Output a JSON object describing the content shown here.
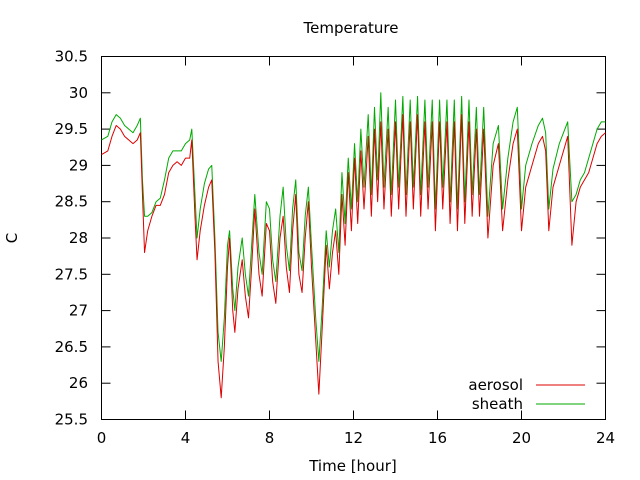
{
  "chart_data": {
    "type": "line",
    "title": "Temperature",
    "xlabel": "Time [hour]",
    "ylabel": "C",
    "xlim": [
      0,
      24
    ],
    "ylim": [
      25.5,
      30.5
    ],
    "xticks": [
      0,
      4,
      8,
      12,
      16,
      20,
      24
    ],
    "yticks": [
      25.5,
      26,
      26.5,
      27,
      27.5,
      28,
      28.5,
      29,
      29.5,
      30,
      30.5
    ],
    "ytick_labels": [
      "25.5",
      "26",
      "26.5",
      "27",
      "27.5",
      "28",
      "28.5",
      "29",
      "29.5",
      "30",
      "30.5"
    ],
    "grid": false,
    "legend_position": "bottom-right",
    "series": [
      {
        "name": "aerosol",
        "color": "#dd0000",
        "points": [
          [
            0.0,
            29.15
          ],
          [
            0.3,
            29.2
          ],
          [
            0.5,
            29.4
          ],
          [
            0.7,
            29.55
          ],
          [
            0.9,
            29.5
          ],
          [
            1.1,
            29.4
          ],
          [
            1.3,
            29.35
          ],
          [
            1.5,
            29.3
          ],
          [
            1.7,
            29.35
          ],
          [
            1.85,
            29.45
          ],
          [
            1.95,
            28.6
          ],
          [
            2.05,
            27.8
          ],
          [
            2.2,
            28.1
          ],
          [
            2.4,
            28.3
          ],
          [
            2.6,
            28.45
          ],
          [
            2.8,
            28.45
          ],
          [
            3.0,
            28.6
          ],
          [
            3.2,
            28.9
          ],
          [
            3.4,
            29.0
          ],
          [
            3.6,
            29.05
          ],
          [
            3.8,
            29.0
          ],
          [
            4.0,
            29.1
          ],
          [
            4.2,
            29.1
          ],
          [
            4.3,
            29.35
          ],
          [
            4.45,
            28.3
          ],
          [
            4.55,
            27.7
          ],
          [
            4.7,
            28.1
          ],
          [
            4.9,
            28.45
          ],
          [
            5.1,
            28.7
          ],
          [
            5.25,
            28.8
          ],
          [
            5.4,
            27.8
          ],
          [
            5.55,
            26.3
          ],
          [
            5.7,
            25.8
          ],
          [
            5.85,
            26.5
          ],
          [
            6.0,
            27.6
          ],
          [
            6.1,
            28.0
          ],
          [
            6.25,
            27.0
          ],
          [
            6.35,
            26.7
          ],
          [
            6.5,
            27.3
          ],
          [
            6.7,
            27.7
          ],
          [
            6.85,
            27.2
          ],
          [
            7.0,
            26.9
          ],
          [
            7.15,
            27.6
          ],
          [
            7.3,
            28.4
          ],
          [
            7.5,
            27.5
          ],
          [
            7.65,
            27.2
          ],
          [
            7.85,
            28.2
          ],
          [
            8.0,
            28.1
          ],
          [
            8.15,
            27.4
          ],
          [
            8.3,
            27.1
          ],
          [
            8.5,
            28.0
          ],
          [
            8.65,
            28.3
          ],
          [
            8.8,
            27.6
          ],
          [
            8.95,
            27.25
          ],
          [
            9.1,
            28.1
          ],
          [
            9.25,
            28.6
          ],
          [
            9.4,
            27.5
          ],
          [
            9.55,
            27.25
          ],
          [
            9.7,
            28.0
          ],
          [
            9.85,
            28.5
          ],
          [
            10.0,
            27.6
          ],
          [
            10.2,
            26.6
          ],
          [
            10.35,
            25.85
          ],
          [
            10.5,
            26.7
          ],
          [
            10.7,
            27.9
          ],
          [
            10.85,
            27.3
          ],
          [
            11.0,
            27.8
          ],
          [
            11.15,
            28.1
          ],
          [
            11.3,
            27.5
          ],
          [
            11.45,
            28.6
          ],
          [
            11.6,
            27.9
          ],
          [
            11.75,
            28.9
          ],
          [
            11.9,
            28.1
          ],
          [
            12.05,
            29.1
          ],
          [
            12.2,
            28.2
          ],
          [
            12.35,
            29.2
          ],
          [
            12.5,
            28.4
          ],
          [
            12.7,
            29.4
          ],
          [
            12.85,
            28.3
          ],
          [
            13.0,
            29.5
          ],
          [
            13.15,
            28.5
          ],
          [
            13.3,
            29.6
          ],
          [
            13.45,
            28.4
          ],
          [
            13.65,
            29.5
          ],
          [
            13.8,
            28.3
          ],
          [
            14.0,
            29.6
          ],
          [
            14.15,
            28.4
          ],
          [
            14.35,
            29.7
          ],
          [
            14.5,
            28.3
          ],
          [
            14.7,
            29.6
          ],
          [
            14.85,
            28.4
          ],
          [
            15.05,
            29.7
          ],
          [
            15.2,
            28.3
          ],
          [
            15.4,
            29.6
          ],
          [
            15.55,
            28.4
          ],
          [
            15.75,
            29.6
          ],
          [
            15.9,
            28.1
          ],
          [
            16.1,
            29.6
          ],
          [
            16.25,
            28.4
          ],
          [
            16.45,
            29.6
          ],
          [
            16.6,
            28.2
          ],
          [
            16.8,
            29.6
          ],
          [
            16.95,
            28.1
          ],
          [
            17.15,
            29.7
          ],
          [
            17.3,
            28.2
          ],
          [
            17.5,
            29.6
          ],
          [
            17.65,
            28.3
          ],
          [
            17.85,
            29.5
          ],
          [
            18.0,
            28.3
          ],
          [
            18.2,
            29.5
          ],
          [
            18.4,
            28.0
          ],
          [
            18.65,
            29.0
          ],
          [
            18.9,
            29.3
          ],
          [
            19.1,
            28.1
          ],
          [
            19.35,
            28.8
          ],
          [
            19.6,
            29.3
          ],
          [
            19.8,
            29.5
          ],
          [
            20.0,
            28.1
          ],
          [
            20.2,
            28.7
          ],
          [
            20.5,
            29.0
          ],
          [
            20.8,
            29.3
          ],
          [
            21.0,
            29.4
          ],
          [
            21.15,
            29.2
          ],
          [
            21.3,
            28.1
          ],
          [
            21.5,
            28.7
          ],
          [
            21.8,
            29.0
          ],
          [
            22.0,
            29.2
          ],
          [
            22.2,
            29.4
          ],
          [
            22.4,
            27.9
          ],
          [
            22.6,
            28.5
          ],
          [
            22.8,
            28.7
          ],
          [
            23.0,
            28.8
          ],
          [
            23.2,
            28.9
          ],
          [
            23.4,
            29.1
          ],
          [
            23.6,
            29.3
          ],
          [
            23.8,
            29.4
          ],
          [
            24.0,
            29.45
          ]
        ]
      },
      {
        "name": "sheath",
        "color": "#00aa00",
        "points": [
          [
            0.0,
            29.35
          ],
          [
            0.3,
            29.4
          ],
          [
            0.5,
            29.6
          ],
          [
            0.7,
            29.7
          ],
          [
            0.9,
            29.65
          ],
          [
            1.1,
            29.55
          ],
          [
            1.3,
            29.5
          ],
          [
            1.5,
            29.45
          ],
          [
            1.7,
            29.55
          ],
          [
            1.85,
            29.65
          ],
          [
            1.95,
            28.8
          ],
          [
            2.05,
            28.3
          ],
          [
            2.2,
            28.3
          ],
          [
            2.4,
            28.35
          ],
          [
            2.6,
            28.5
          ],
          [
            2.8,
            28.55
          ],
          [
            3.0,
            28.8
          ],
          [
            3.2,
            29.1
          ],
          [
            3.4,
            29.2
          ],
          [
            3.6,
            29.2
          ],
          [
            3.8,
            29.2
          ],
          [
            4.0,
            29.3
          ],
          [
            4.2,
            29.35
          ],
          [
            4.3,
            29.5
          ],
          [
            4.45,
            28.6
          ],
          [
            4.55,
            28.0
          ],
          [
            4.7,
            28.4
          ],
          [
            4.9,
            28.75
          ],
          [
            5.1,
            28.95
          ],
          [
            5.25,
            29.0
          ],
          [
            5.4,
            28.0
          ],
          [
            5.55,
            26.7
          ],
          [
            5.7,
            26.3
          ],
          [
            5.85,
            26.9
          ],
          [
            6.0,
            27.9
          ],
          [
            6.1,
            28.1
          ],
          [
            6.25,
            27.3
          ],
          [
            6.35,
            27.0
          ],
          [
            6.5,
            27.6
          ],
          [
            6.7,
            28.0
          ],
          [
            6.85,
            27.5
          ],
          [
            7.0,
            27.2
          ],
          [
            7.15,
            27.9
          ],
          [
            7.3,
            28.6
          ],
          [
            7.5,
            27.8
          ],
          [
            7.65,
            27.5
          ],
          [
            7.85,
            28.5
          ],
          [
            8.0,
            28.4
          ],
          [
            8.15,
            27.7
          ],
          [
            8.3,
            27.4
          ],
          [
            8.5,
            28.3
          ],
          [
            8.65,
            28.7
          ],
          [
            8.8,
            27.9
          ],
          [
            8.95,
            27.55
          ],
          [
            9.1,
            28.4
          ],
          [
            9.25,
            28.8
          ],
          [
            9.4,
            27.8
          ],
          [
            9.55,
            27.55
          ],
          [
            9.7,
            28.3
          ],
          [
            9.85,
            28.7
          ],
          [
            10.0,
            27.9
          ],
          [
            10.2,
            26.9
          ],
          [
            10.35,
            26.3
          ],
          [
            10.5,
            27.0
          ],
          [
            10.7,
            28.1
          ],
          [
            10.85,
            27.6
          ],
          [
            11.0,
            28.1
          ],
          [
            11.15,
            28.4
          ],
          [
            11.3,
            27.8
          ],
          [
            11.45,
            28.9
          ],
          [
            11.6,
            28.2
          ],
          [
            11.75,
            29.1
          ],
          [
            11.9,
            28.4
          ],
          [
            12.05,
            29.3
          ],
          [
            12.2,
            28.5
          ],
          [
            12.35,
            29.5
          ],
          [
            12.5,
            28.7
          ],
          [
            12.7,
            29.7
          ],
          [
            12.85,
            28.6
          ],
          [
            13.0,
            29.8
          ],
          [
            13.15,
            28.8
          ],
          [
            13.3,
            30.0
          ],
          [
            13.45,
            28.7
          ],
          [
            13.65,
            29.8
          ],
          [
            13.8,
            28.6
          ],
          [
            14.0,
            29.9
          ],
          [
            14.15,
            28.7
          ],
          [
            14.35,
            29.95
          ],
          [
            14.5,
            28.6
          ],
          [
            14.7,
            29.9
          ],
          [
            14.85,
            28.7
          ],
          [
            15.05,
            29.95
          ],
          [
            15.2,
            28.6
          ],
          [
            15.4,
            29.9
          ],
          [
            15.55,
            28.7
          ],
          [
            15.75,
            29.9
          ],
          [
            15.9,
            28.4
          ],
          [
            16.1,
            29.9
          ],
          [
            16.25,
            28.7
          ],
          [
            16.45,
            29.9
          ],
          [
            16.6,
            28.5
          ],
          [
            16.8,
            29.9
          ],
          [
            16.95,
            28.4
          ],
          [
            17.15,
            29.95
          ],
          [
            17.3,
            28.5
          ],
          [
            17.5,
            29.9
          ],
          [
            17.65,
            28.6
          ],
          [
            17.85,
            29.8
          ],
          [
            18.0,
            28.6
          ],
          [
            18.2,
            29.8
          ],
          [
            18.4,
            28.3
          ],
          [
            18.65,
            29.3
          ],
          [
            18.9,
            29.55
          ],
          [
            19.1,
            28.4
          ],
          [
            19.35,
            29.1
          ],
          [
            19.6,
            29.6
          ],
          [
            19.8,
            29.8
          ],
          [
            20.0,
            28.4
          ],
          [
            20.2,
            29.0
          ],
          [
            20.5,
            29.3
          ],
          [
            20.8,
            29.55
          ],
          [
            21.0,
            29.65
          ],
          [
            21.15,
            29.45
          ],
          [
            21.3,
            28.4
          ],
          [
            21.5,
            28.95
          ],
          [
            21.8,
            29.3
          ],
          [
            22.0,
            29.45
          ],
          [
            22.2,
            29.6
          ],
          [
            22.4,
            28.5
          ],
          [
            22.6,
            28.6
          ],
          [
            22.8,
            28.8
          ],
          [
            23.0,
            28.9
          ],
          [
            23.2,
            29.1
          ],
          [
            23.4,
            29.3
          ],
          [
            23.6,
            29.5
          ],
          [
            23.8,
            29.6
          ],
          [
            24.0,
            29.6
          ]
        ]
      }
    ]
  }
}
